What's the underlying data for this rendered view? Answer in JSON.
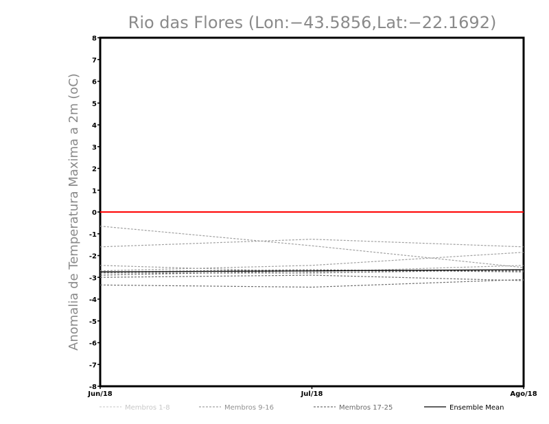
{
  "chart_data": {
    "type": "line",
    "title": "Rio das Flores (Lon:−43.5856,Lat:−22.1692)",
    "ylabel": "Anomalia de Temperatura Maxima a 2m (oC)",
    "xlabel": "",
    "categories": [
      "Jun/18",
      "Jul/18",
      "Ago/18"
    ],
    "ylim": [
      -8,
      8
    ],
    "yticks": [
      "-8",
      "-7",
      "-6",
      "-5",
      "-4",
      "-3",
      "-2",
      "-1",
      "0",
      "1",
      "2",
      "3",
      "4",
      "5",
      "6",
      "7",
      "8"
    ],
    "reference_line": {
      "y": 0,
      "color": "#ff0000"
    },
    "series": [
      {
        "group": "Membros 9-16",
        "values": [
          -0.65,
          -1.55,
          -2.55
        ]
      },
      {
        "group": "Membros 9-16",
        "values": [
          -1.6,
          -1.25,
          -1.6
        ]
      },
      {
        "group": "Membros 9-16",
        "values": [
          -2.45,
          -2.75,
          -2.45
        ]
      },
      {
        "group": "Membros 9-16",
        "values": [
          -2.7,
          -2.45,
          -1.85
        ]
      },
      {
        "group": "Membros 17-25",
        "values": [
          -2.8,
          -2.8,
          -2.65
        ]
      },
      {
        "group": "Membros 17-25",
        "values": [
          -2.9,
          -2.7,
          -2.7
        ]
      },
      {
        "group": "Membros 17-25",
        "values": [
          -3.0,
          -2.9,
          -3.15
        ]
      },
      {
        "group": "Membros 17-25",
        "values": [
          -3.35,
          -3.45,
          -3.1
        ]
      },
      {
        "group": "Membros 17-25",
        "values": [
          -2.75,
          -2.65,
          -2.75
        ]
      }
    ],
    "ensemble_mean": [
      -2.75,
      -2.7,
      -2.65
    ],
    "legend": [
      {
        "label": "Membros 1-8",
        "style": "dashed",
        "color": "#d0d0d0",
        "text_color": "#c8c8c8"
      },
      {
        "label": "Membros 9-16",
        "style": "dashed",
        "color": "#a0a0a0",
        "text_color": "#909090"
      },
      {
        "label": "Membros 17-25",
        "style": "dashed",
        "color": "#707070",
        "text_color": "#6a6a6a"
      },
      {
        "label": "Ensemble Mean",
        "style": "solid",
        "color": "#000000",
        "text_color": "#000000"
      }
    ],
    "legend_position": "bottom",
    "grid": false
  }
}
